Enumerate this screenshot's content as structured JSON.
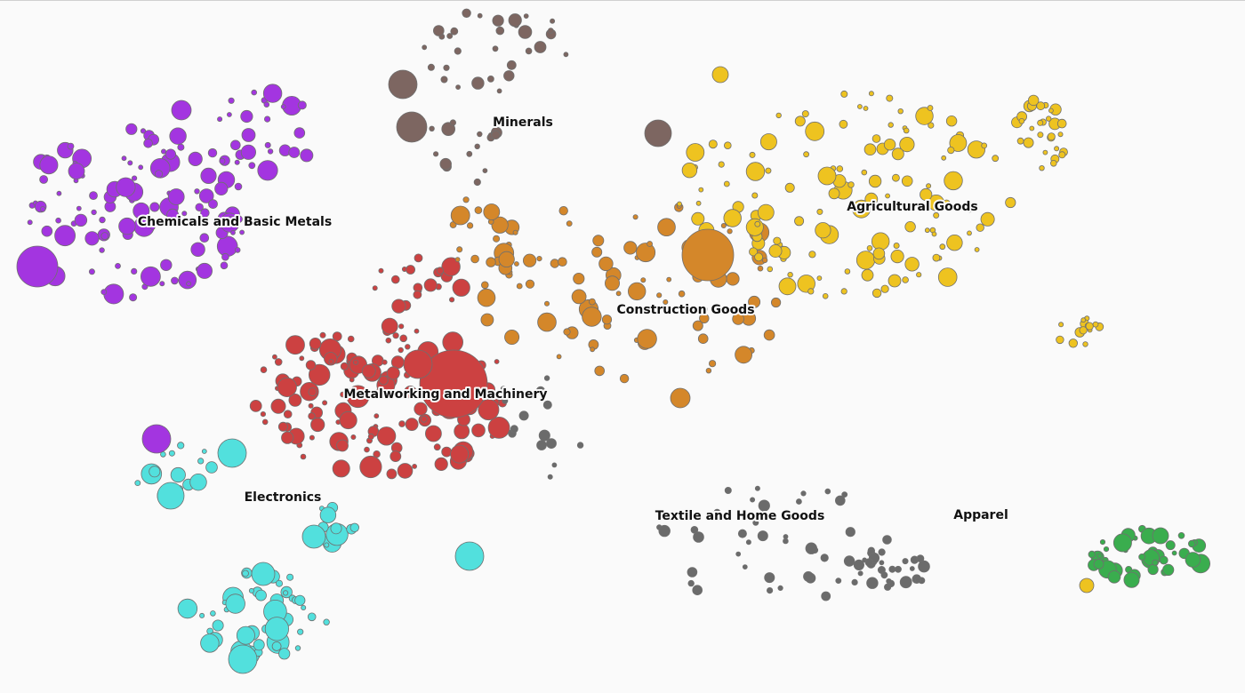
{
  "clusters": [
    {
      "label": "Minerals"
    },
    {
      "label": "Chemicals and Basic Metals"
    },
    {
      "label": "Agricultural Goods"
    },
    {
      "label": "Construction Goods"
    },
    {
      "label": "Metalworking and Machinery"
    },
    {
      "label": "Electronics"
    },
    {
      "label": "Textile and Home Goods"
    },
    {
      "label": "Apparel"
    }
  ]
}
